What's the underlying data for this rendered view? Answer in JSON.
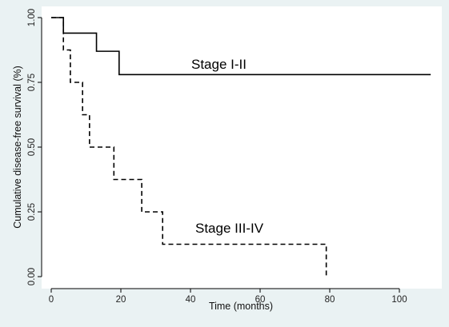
{
  "chart_data": {
    "type": "line",
    "subtype": "step (Kaplan-Meier)",
    "title": "",
    "xlabel": "Time (months)",
    "ylabel": "Cumulative disease-free survival (%)",
    "xlim": [
      0,
      110
    ],
    "ylim": [
      0,
      1
    ],
    "x_ticks": [
      0,
      20,
      40,
      60,
      80,
      100
    ],
    "x_tick_labels": [
      "0",
      "20",
      "40",
      "60",
      "80",
      "100"
    ],
    "y_ticks": [
      0,
      0.25,
      0.5,
      0.75,
      1
    ],
    "y_tick_labels": [
      "0.00",
      "0.25",
      "0.50",
      "0.75",
      "1.00"
    ],
    "grid": false,
    "legend": "none (series labelled directly on plot)",
    "series": [
      {
        "name": "Stage I-II",
        "line_style": "solid",
        "color": "#000000",
        "steps": [
          [
            0,
            1.0
          ],
          [
            3.5,
            0.94
          ],
          [
            13,
            0.87
          ],
          [
            19.5,
            0.78
          ],
          [
            109,
            0.78
          ]
        ]
      },
      {
        "name": "Stage III-IV",
        "line_style": "dashed",
        "color": "#000000",
        "steps": [
          [
            0,
            1.0
          ],
          [
            3.5,
            0.875
          ],
          [
            5.5,
            0.75
          ],
          [
            9,
            0.625
          ],
          [
            11,
            0.5
          ],
          [
            18,
            0.375
          ],
          [
            26,
            0.25
          ],
          [
            32,
            0.125
          ],
          [
            79,
            0.0
          ]
        ]
      }
    ]
  },
  "colors": {
    "background": "#eaf2f3",
    "plot_area": "#ffffff",
    "axis": "#000000"
  }
}
